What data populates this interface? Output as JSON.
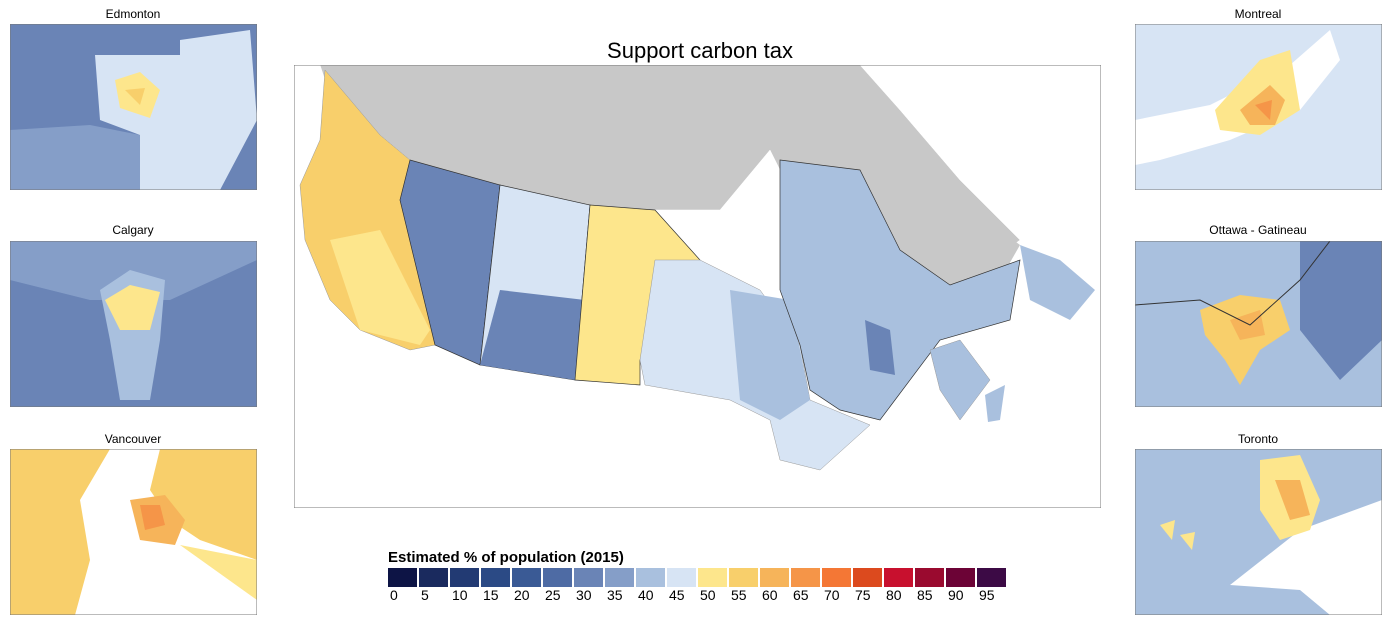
{
  "title": "Support carbon tax",
  "insets": [
    "Edmonton",
    "Calgary",
    "Vancouver",
    "Montreal",
    "Ottawa - Gatineau",
    "Toronto"
  ],
  "legend": {
    "title": "Estimated % of population (2015)",
    "bins": [
      {
        "value": 0,
        "color": "#0d1445"
      },
      {
        "value": 5,
        "color": "#1a2a5e"
      },
      {
        "value": 10,
        "color": "#223a73"
      },
      {
        "value": 15,
        "color": "#2b4a85"
      },
      {
        "value": 20,
        "color": "#3a5a95"
      },
      {
        "value": 25,
        "color": "#4e6ba4"
      },
      {
        "value": 30,
        "color": "#6a84b6"
      },
      {
        "value": 35,
        "color": "#859ec8"
      },
      {
        "value": 40,
        "color": "#a9c0de"
      },
      {
        "value": 45,
        "color": "#d7e4f4"
      },
      {
        "value": 50,
        "color": "#fde68c"
      },
      {
        "value": 55,
        "color": "#f8cf6b"
      },
      {
        "value": 60,
        "color": "#f6b45a"
      },
      {
        "value": 65,
        "color": "#f59548"
      },
      {
        "value": 70,
        "color": "#f47735"
      },
      {
        "value": 75,
        "color": "#dc4a1e"
      },
      {
        "value": 80,
        "color": "#c8102e"
      },
      {
        "value": 85,
        "color": "#9a0a2f"
      },
      {
        "value": 90,
        "color": "#6c0336"
      },
      {
        "value": 95,
        "color": "#3c0a45"
      }
    ]
  }
}
